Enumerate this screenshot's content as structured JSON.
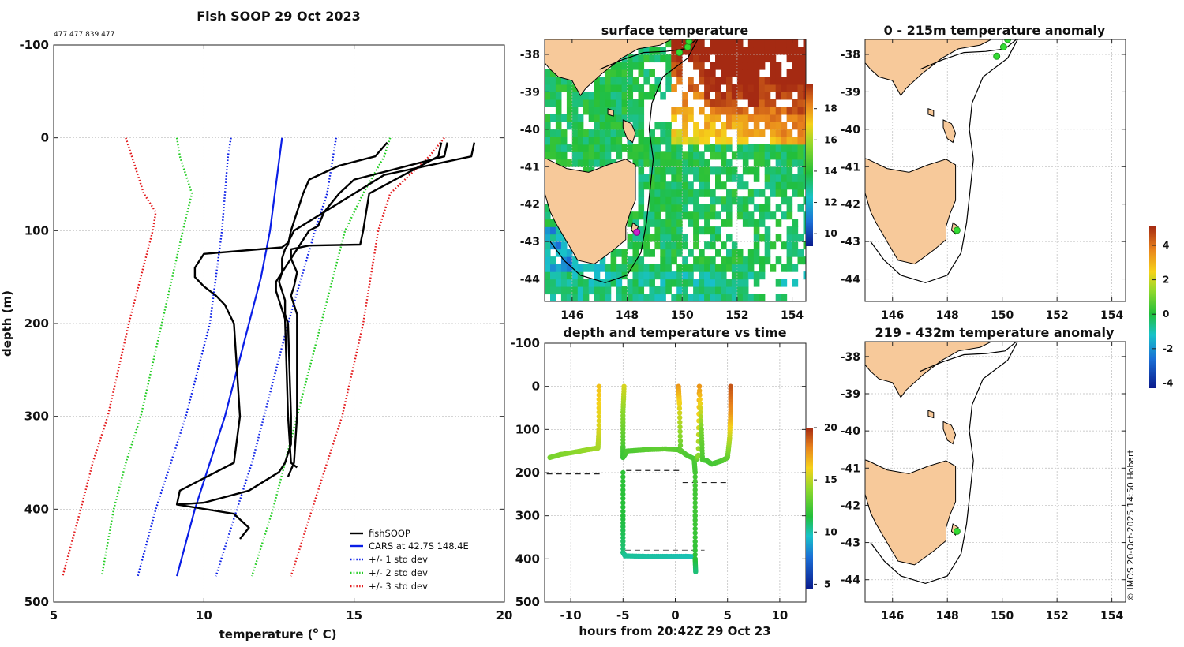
{
  "colors": {
    "fishsoop": "#000000",
    "cars": "#0a1ee6",
    "std1": "#0a1ee6",
    "std2": "#22cc22",
    "std3": "#e31a1c",
    "land": "#f7c99a",
    "grid": "#bbbbbb",
    "marker_green": "#33dd33",
    "marker_magenta": "#cc22cc"
  },
  "credit": "© IMOS 20-Oct-2025 14:50 Hobart",
  "chart_data": [
    {
      "id": "profile",
      "type": "line",
      "title": "Fish SOOP 29 Oct 2023",
      "subtitle": "477 477 839 477",
      "xlabel": "temperature (o C)",
      "xlabel_main": "temperature (",
      "xlabel_sup": "o",
      "xlabel_end": " C)",
      "ylabel": "depth (m)",
      "xlim": [
        5,
        20
      ],
      "ylim": [
        -100,
        500
      ],
      "y_reversed": true,
      "xticks": [
        "5",
        "10",
        "15",
        "20"
      ],
      "xtick_values": [
        5,
        10,
        15,
        20
      ],
      "yticks": [
        "-100",
        "0",
        "100",
        "200",
        "300",
        "400",
        "500"
      ],
      "ytick_values": [
        -100,
        0,
        100,
        200,
        300,
        400,
        500
      ],
      "legend": [
        "fishSOOP",
        "CARS at 42.7S 148.4E",
        "+/- 1 std dev",
        "+/- 2 std dev",
        "+/- 3 std dev"
      ],
      "legend_position": "bottom-right",
      "series": [
        {
          "name": "cars",
          "style": "solid",
          "color": "cars",
          "depth": [
            0,
            50,
            100,
            150,
            200,
            250,
            300,
            350,
            400,
            472
          ],
          "values": [
            12.6,
            12.4,
            12.2,
            11.9,
            11.5,
            11.1,
            10.7,
            10.2,
            9.7,
            9.1
          ]
        },
        {
          "name": "std1_hi",
          "style": "dot",
          "color": "std1",
          "depth": [
            0,
            20,
            60,
            100,
            200,
            300,
            350,
            400,
            472
          ],
          "values": [
            14.4,
            14.3,
            14.1,
            13.7,
            12.8,
            12.0,
            11.6,
            11.1,
            10.4
          ]
        },
        {
          "name": "std1_lo",
          "style": "dot",
          "color": "std1",
          "depth": [
            0,
            20,
            60,
            100,
            200,
            300,
            350,
            400,
            472
          ],
          "values": [
            10.9,
            10.8,
            10.7,
            10.6,
            10.2,
            9.4,
            8.9,
            8.4,
            7.8
          ]
        },
        {
          "name": "std2_hi",
          "style": "dot",
          "color": "std2",
          "depth": [
            0,
            20,
            60,
            100,
            200,
            300,
            350,
            400,
            472
          ],
          "values": [
            16.2,
            16.0,
            15.3,
            14.7,
            13.9,
            13.1,
            12.7,
            12.3,
            11.6
          ]
        },
        {
          "name": "std2_lo",
          "style": "dot",
          "color": "std2",
          "depth": [
            0,
            20,
            60,
            100,
            200,
            300,
            350,
            400,
            472
          ],
          "values": [
            9.1,
            9.2,
            9.6,
            9.3,
            8.6,
            7.9,
            7.4,
            7.0,
            6.6
          ]
        },
        {
          "name": "std3_hi",
          "style": "dot",
          "color": "std3",
          "depth": [
            0,
            20,
            60,
            100,
            200,
            300,
            350,
            400,
            472
          ],
          "values": [
            18.0,
            17.5,
            16.2,
            15.8,
            15.3,
            14.6,
            14.1,
            13.6,
            12.9
          ]
        },
        {
          "name": "std3_lo",
          "style": "dot",
          "color": "std3",
          "depth": [
            0,
            20,
            60,
            80,
            100,
            200,
            300,
            350,
            400,
            472
          ],
          "values": [
            7.4,
            7.6,
            8.0,
            8.4,
            8.3,
            7.5,
            6.8,
            6.3,
            5.9,
            5.3
          ]
        },
        {
          "name": "fishSOOP_1",
          "style": "solid",
          "color": "fishsoop",
          "depth": [
            5,
            20,
            30,
            45,
            60,
            80,
            100,
            115,
            120,
            130,
            145,
            155,
            165,
            175,
            180,
            190,
            200,
            300,
            330,
            350,
            360,
            380,
            393,
            395,
            405,
            420,
            432
          ],
          "values": [
            16.1,
            15.7,
            14.5,
            13.5,
            13.3,
            13.1,
            12.9,
            12.8,
            12.7,
            12.6,
            12.6,
            12.5,
            12.6,
            12.7,
            12.7,
            12.7,
            12.8,
            12.9,
            12.9,
            12.7,
            12.5,
            11.5,
            10.0,
            9.1,
            11.0,
            11.5,
            11.2
          ]
        },
        {
          "name": "fishSOOP_2",
          "style": "solid",
          "color": "fishsoop",
          "depth": [
            5,
            20,
            40,
            60,
            80,
            100,
            113,
            118,
            125,
            140,
            150,
            160,
            170,
            180,
            200,
            300,
            350,
            375,
            380,
            395
          ],
          "values": [
            19.0,
            18.9,
            16.0,
            15.0,
            14.0,
            13.0,
            12.8,
            12.6,
            10.0,
            9.7,
            9.7,
            10.0,
            10.4,
            10.7,
            11.0,
            11.2,
            11.0,
            9.5,
            9.2,
            9.1
          ]
        },
        {
          "name": "fishSOOP_3",
          "style": "solid",
          "color": "fishsoop",
          "depth": [
            5,
            20,
            45,
            60,
            80,
            95,
            100,
            115,
            125,
            135,
            145,
            155,
            165,
            175,
            195,
            300,
            350,
            355
          ],
          "values": [
            18.1,
            18.0,
            15.0,
            14.5,
            14.0,
            13.8,
            13.5,
            13.2,
            13.0,
            12.8,
            12.6,
            12.4,
            12.4,
            12.5,
            12.7,
            12.8,
            12.9,
            13.1
          ]
        },
        {
          "name": "fishSOOP_4",
          "style": "solid",
          "color": "fishsoop",
          "depth": [
            5,
            20,
            60,
            100,
            115,
            116,
            120,
            130,
            145,
            160,
            170,
            190,
            300,
            350,
            365
          ],
          "values": [
            17.9,
            17.8,
            15.5,
            15.3,
            15.2,
            13.5,
            12.9,
            12.9,
            13.1,
            13.0,
            12.9,
            13.1,
            13.1,
            13.0,
            12.8
          ]
        }
      ]
    },
    {
      "id": "sst_map",
      "type": "heatmap",
      "title": "surface temperature",
      "xlim": [
        145,
        154.5
      ],
      "ylim": [
        -44.6,
        -37.6
      ],
      "xticks": [
        "146",
        "148",
        "150",
        "152",
        "154"
      ],
      "xtick_values": [
        146,
        148,
        150,
        152,
        154
      ],
      "yticks": [
        "-38",
        "-39",
        "-40",
        "-41",
        "-42",
        "-43",
        "-44"
      ],
      "ytick_values": [
        -38,
        -39,
        -40,
        -41,
        -42,
        -43,
        -44
      ],
      "colorbar": {
        "min": 9.2,
        "max": 19.6,
        "ticks": [
          "10",
          "12",
          "14",
          "16",
          "18"
        ],
        "tick_values": [
          10,
          12,
          14,
          16,
          18
        ]
      },
      "markers": [
        {
          "lon": 148.35,
          "lat": -42.75,
          "color": "marker_magenta"
        },
        {
          "lon": 150.2,
          "lat": -37.8,
          "color": "marker_green"
        },
        {
          "lon": 149.9,
          "lat": -37.95,
          "color": "marker_green"
        },
        {
          "lon": 150.25,
          "lat": -37.65,
          "color": "marker_green"
        }
      ]
    },
    {
      "id": "time_series",
      "type": "scatter",
      "title": "depth and temperature vs time",
      "xlabel": "hours from 20:42Z 29 Oct 23",
      "xlim": [
        -12.5,
        12.5
      ],
      "ylim": [
        -100,
        500
      ],
      "y_reversed": true,
      "xticks": [
        "-10",
        "-5",
        "0",
        "5",
        "10"
      ],
      "xtick_values": [
        -10,
        -5,
        0,
        5,
        10
      ],
      "yticks": [
        "-100",
        "0",
        "100",
        "200",
        "300",
        "400",
        "500"
      ],
      "ytick_values": [
        -100,
        0,
        100,
        200,
        300,
        400,
        500
      ],
      "colorbar": {
        "min": 4.5,
        "max": 20,
        "ticks": [
          "5",
          "10",
          "15",
          "20"
        ],
        "tick_values": [
          5,
          10,
          15,
          20
        ]
      },
      "tracks": [
        {
          "time": [
            -12.0,
            -11.0,
            -9.5,
            -8.2,
            -7.4,
            -7.3,
            -7.3
          ],
          "depth": [
            165,
            158,
            152,
            146,
            143,
            100,
            0
          ],
          "temp": [
            13.5,
            13.7,
            14.0,
            14.3,
            14.5,
            15.5,
            16.5
          ]
        },
        {
          "time": [
            -4.9,
            -5.0,
            -5.0,
            -5.0,
            -4.6,
            -3.0,
            -1.0,
            0.3,
            0.5
          ],
          "depth": [
            0,
            60,
            140,
            165,
            150,
            147,
            145,
            147,
            150
          ],
          "temp": [
            15.5,
            14.0,
            12.5,
            12.0,
            12.5,
            12.8,
            13.0,
            12.8,
            12.7
          ]
        },
        {
          "time": [
            -5.0,
            -5.0,
            -5.0,
            -4.8,
            -3.0,
            -1.0,
            1.0,
            1.8
          ],
          "depth": [
            200,
            300,
            385,
            393,
            394,
            394,
            394,
            395
          ],
          "temp": [
            11.8,
            11.5,
            10.5,
            10.0,
            9.8,
            9.7,
            9.5,
            9.5
          ]
        },
        {
          "time": [
            0.3,
            0.4,
            0.5,
            1.0,
            1.8,
            1.9,
            1.9,
            1.9,
            1.95
          ],
          "depth": [
            0,
            40,
            148,
            158,
            168,
            200,
            300,
            400,
            430
          ],
          "temp": [
            17.5,
            16.0,
            13.0,
            12.6,
            12.5,
            12.3,
            12.2,
            11.8,
            10.5
          ]
        },
        {
          "time": [
            2.0,
            2.2,
            2.3,
            2.5,
            2.6,
            3.0,
            3.5,
            4.0,
            4.5,
            5.0,
            5.2,
            5.3,
            5.3
          ],
          "depth": [
            170,
            160,
            0,
            100,
            170,
            172,
            180,
            176,
            172,
            165,
            120,
            60,
            0
          ],
          "temp": [
            12.5,
            14.0,
            17.5,
            13.5,
            12.5,
            12.4,
            12.3,
            12.4,
            12.6,
            13.0,
            15.0,
            17.5,
            19.0
          ]
        }
      ],
      "reference_lines": [
        {
          "t0": -12.3,
          "t1": -7.0,
          "depth": 203,
          "color": "#222222"
        },
        {
          "t0": -4.7,
          "t1": 0.5,
          "depth": 195,
          "color": "#222222"
        },
        {
          "t0": 0.7,
          "t1": 5.0,
          "depth": 223,
          "color": "#222222"
        },
        {
          "t0": -4.8,
          "t1": 2.8,
          "depth": 380,
          "color": "#777777"
        }
      ]
    },
    {
      "id": "anomaly_0_215",
      "type": "scatter",
      "title": "0 - 215m temperature anomaly",
      "xlim": [
        145,
        154.5
      ],
      "ylim": [
        -44.6,
        -37.6
      ],
      "xticks": [
        "146",
        "148",
        "150",
        "152",
        "154"
      ],
      "xtick_values": [
        146,
        148,
        150,
        152,
        154
      ],
      "yticks": [
        "-38",
        "-39",
        "-40",
        "-41",
        "-42",
        "-43",
        "-44"
      ],
      "ytick_values": [
        -38,
        -39,
        -40,
        -41,
        -42,
        -43,
        -44
      ],
      "markers": [
        {
          "lon": 148.35,
          "lat": -42.7,
          "color": "marker_green"
        },
        {
          "lon": 149.8,
          "lat": -38.05,
          "color": "marker_green"
        },
        {
          "lon": 150.05,
          "lat": -37.8,
          "color": "marker_green"
        },
        {
          "lon": 150.2,
          "lat": -37.6,
          "color": "marker_green"
        }
      ]
    },
    {
      "id": "anomaly_219_432",
      "type": "scatter",
      "title": "219 - 432m temperature anomaly",
      "xlim": [
        145,
        154.5
      ],
      "ylim": [
        -44.6,
        -37.6
      ],
      "xticks": [
        "146",
        "148",
        "150",
        "152",
        "154"
      ],
      "xtick_values": [
        146,
        148,
        150,
        152,
        154
      ],
      "yticks": [
        "-38",
        "-39",
        "-40",
        "-41",
        "-42",
        "-43",
        "-44"
      ],
      "ytick_values": [
        -38,
        -39,
        -40,
        -41,
        -42,
        -43,
        -44
      ],
      "markers": [
        {
          "lon": 148.35,
          "lat": -42.7,
          "color": "marker_green"
        }
      ]
    },
    {
      "id": "anomaly_colorbar",
      "type": "heatmap",
      "colorbar": {
        "min": -4.3,
        "max": 5.1,
        "ticks": [
          "-4",
          "-2",
          "0",
          "2",
          "4"
        ],
        "tick_values": [
          -4,
          -2,
          0,
          2,
          4
        ]
      }
    }
  ]
}
